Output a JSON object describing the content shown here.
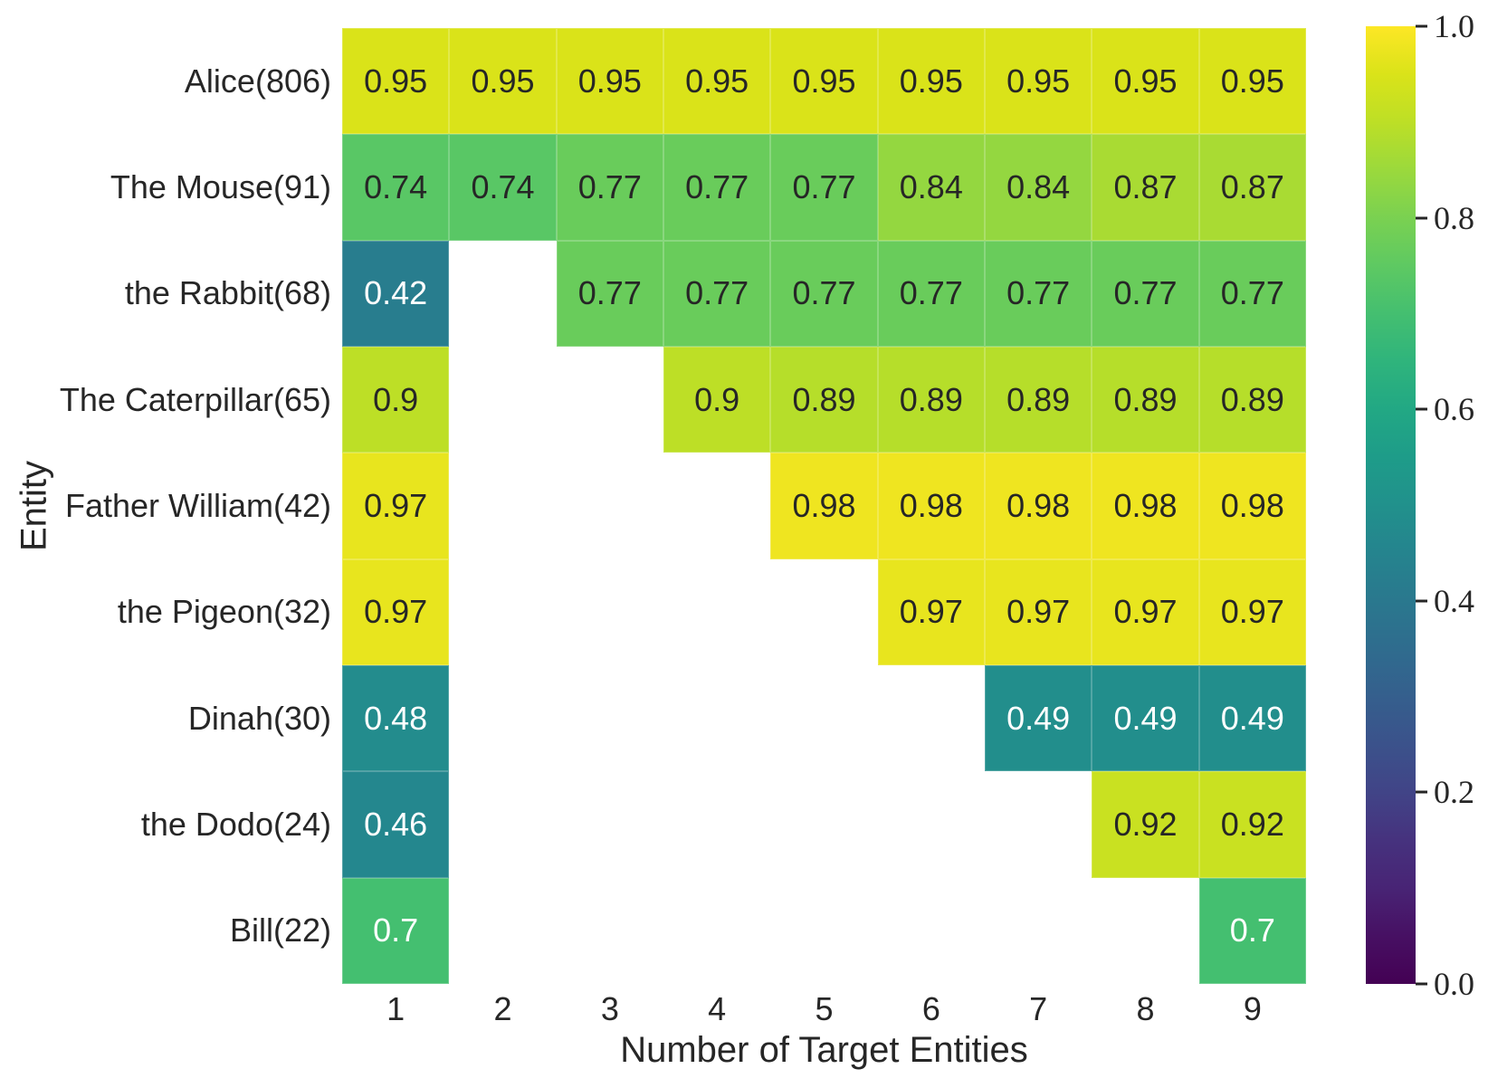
{
  "figure": {
    "background": "#ffffff",
    "text_color": "#262626"
  },
  "chart_data": {
    "type": "heatmap",
    "title": "",
    "xlabel": "Number of Target Entities",
    "ylabel": "Entity",
    "colormap": "viridis",
    "grid": false,
    "x_categories": [
      "1",
      "2",
      "3",
      "4",
      "5",
      "6",
      "7",
      "8",
      "9"
    ],
    "y_categories": [
      "Alice(806)",
      "The Mouse(91)",
      "the Rabbit(68)",
      "The Caterpillar(65)",
      "Father William(42)",
      "the Pigeon(32)",
      "Dinah(30)",
      "the Dodo(24)",
      "Bill(22)"
    ],
    "values": [
      [
        0.95,
        0.95,
        0.95,
        0.95,
        0.95,
        0.95,
        0.95,
        0.95,
        0.95
      ],
      [
        0.74,
        0.74,
        0.77,
        0.77,
        0.77,
        0.84,
        0.84,
        0.87,
        0.87
      ],
      [
        0.42,
        null,
        0.77,
        0.77,
        0.77,
        0.77,
        0.77,
        0.77,
        0.77
      ],
      [
        0.9,
        null,
        null,
        0.9,
        0.89,
        0.89,
        0.89,
        0.89,
        0.89
      ],
      [
        0.97,
        null,
        null,
        null,
        0.98,
        0.98,
        0.98,
        0.98,
        0.98
      ],
      [
        0.97,
        null,
        null,
        null,
        null,
        0.97,
        0.97,
        0.97,
        0.97
      ],
      [
        0.48,
        null,
        null,
        null,
        null,
        null,
        0.49,
        0.49,
        0.49
      ],
      [
        0.46,
        null,
        null,
        null,
        null,
        null,
        null,
        0.92,
        0.92
      ],
      [
        0.7,
        null,
        null,
        null,
        null,
        null,
        null,
        null,
        0.7
      ]
    ],
    "cell_labels": [
      [
        "0.95",
        "0.95",
        "0.95",
        "0.95",
        "0.95",
        "0.95",
        "0.95",
        "0.95",
        "0.95"
      ],
      [
        "0.74",
        "0.74",
        "0.77",
        "0.77",
        "0.77",
        "0.84",
        "0.84",
        "0.87",
        "0.87"
      ],
      [
        "0.42",
        null,
        "0.77",
        "0.77",
        "0.77",
        "0.77",
        "0.77",
        "0.77",
        "0.77"
      ],
      [
        "0.9",
        null,
        null,
        "0.9",
        "0.89",
        "0.89",
        "0.89",
        "0.89",
        "0.89"
      ],
      [
        "0.97",
        null,
        null,
        null,
        "0.98",
        "0.98",
        "0.98",
        "0.98",
        "0.98"
      ],
      [
        "0.97",
        null,
        null,
        null,
        null,
        "0.97",
        "0.97",
        "0.97",
        "0.97"
      ],
      [
        "0.48",
        null,
        null,
        null,
        null,
        null,
        "0.49",
        "0.49",
        "0.49"
      ],
      [
        "0.46",
        null,
        null,
        null,
        null,
        null,
        null,
        "0.92",
        "0.92"
      ],
      [
        "0.7",
        null,
        null,
        null,
        null,
        null,
        null,
        null,
        "0.7"
      ]
    ],
    "value_styles": {
      "0.42": {
        "bg": "#287d8e",
        "fg": "#ffffff"
      },
      "0.46": {
        "bg": "#24878e",
        "fg": "#ffffff"
      },
      "0.48": {
        "bg": "#238c8d",
        "fg": "#ffffff"
      },
      "0.49": {
        "bg": "#228e8c",
        "fg": "#ffffff"
      },
      "0.7": {
        "bg": "#44bf70",
        "fg": "#ffffff"
      },
      "0.74": {
        "bg": "#59c765",
        "fg": "#262626"
      },
      "0.77": {
        "bg": "#69cc5b",
        "fg": "#262626"
      },
      "0.84": {
        "bg": "#94d740",
        "fg": "#262626"
      },
      "0.87": {
        "bg": "#a9db33",
        "fg": "#262626"
      },
      "0.89": {
        "bg": "#b6de2a",
        "fg": "#262626"
      },
      "0.9": {
        "bg": "#bddf26",
        "fg": "#262626"
      },
      "0.92": {
        "bg": "#c9e121",
        "fg": "#262626"
      },
      "0.95": {
        "bg": "#dae319",
        "fg": "#262626"
      },
      "0.97": {
        "bg": "#e8e51e",
        "fg": "#262626"
      },
      "0.98": {
        "bg": "#efe520",
        "fg": "#262626"
      }
    },
    "colorbar": {
      "position": "right",
      "range": [
        0.0,
        1.0
      ],
      "tick_labels": [
        "1.0",
        "0.8",
        "0.6",
        "0.4",
        "0.2",
        "0.0"
      ],
      "tick_values": [
        1.0,
        0.8,
        0.6,
        0.4,
        0.2,
        0.0
      ],
      "gradient_stops_top_to_bottom": [
        "#fde725",
        "#dae319",
        "#bddf26",
        "#9bd93c",
        "#7ad151",
        "#5ec962",
        "#44bf70",
        "#2fb47c",
        "#22a884",
        "#1e9c89",
        "#21918c",
        "#25848e",
        "#2a788e",
        "#2f6c8e",
        "#355f8d",
        "#3b528b",
        "#414487",
        "#46327e",
        "#482475",
        "#471063",
        "#440154"
      ]
    }
  }
}
